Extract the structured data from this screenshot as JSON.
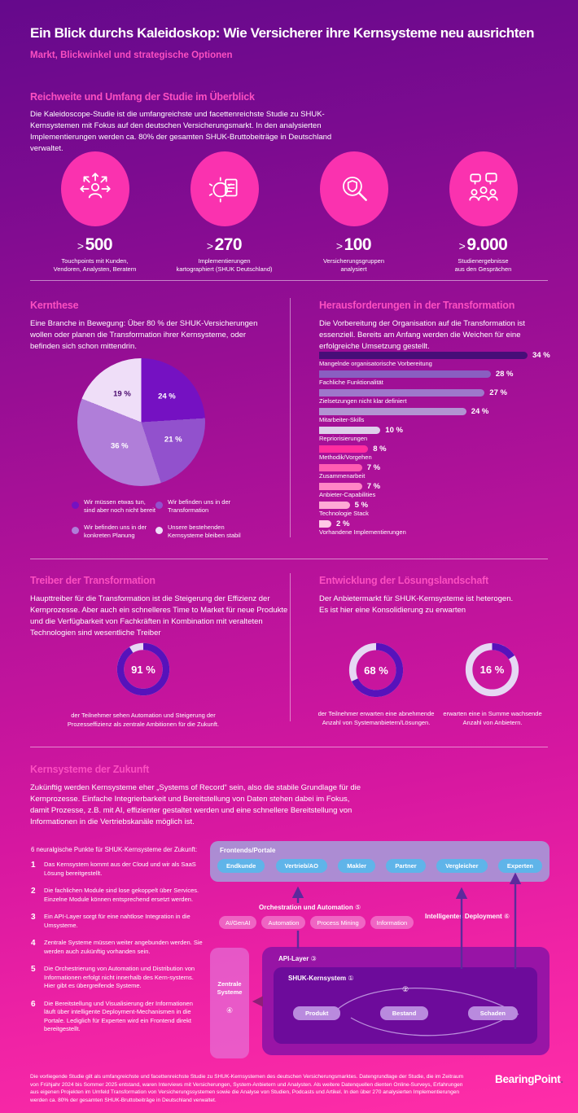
{
  "palette": {
    "bg_top": "#65098c",
    "bg_bottom": "#ff2ea8",
    "accent_pink": "#fc4fc1",
    "stat_circle": "#fa32af",
    "frontend_pill_blue": "#5fb4e9",
    "arrow_purple": "#5c2a9c",
    "arrow_magenta": "#8e1f77"
  },
  "header": {
    "title": "Ein Blick durchs Kaleidoskop: Wie Versicherer ihre Kernsysteme neu ausrichten",
    "subtitle": "Markt, Blickwinkel und strategische Optionen"
  },
  "overview": {
    "heading": "Reichweite und Umfang der Studie im Überblick",
    "body": "Die Kaleidoscope-Studie ist die umfangreichste und facettenreichste Studie zu SHUK-Kernsystemen mit Fokus auf den deutschen Versicherungsmarkt. In den analysierten Implementierungen werden ca. 80% der gesamten SHUK-Bruttobeiträge in Deutschland verwaltet.",
    "stats": [
      {
        "icon": "person-arrows-icon",
        "prefix": ">",
        "value": "500",
        "label": "Touchpoints mit Kunden,\nVendoren, Analysten, Beratern"
      },
      {
        "icon": "gear-document-icon",
        "prefix": ">",
        "value": "270",
        "label": "Implementierungen\nkartographiert (SHUK Deutschland)"
      },
      {
        "icon": "shield-magnifier-icon",
        "prefix": ">",
        "value": "100",
        "label": "Versicherungsgruppen\nanalysiert"
      },
      {
        "icon": "people-chat-icon",
        "prefix": ">",
        "value": "9.000",
        "label": "Studienergebnisse\naus den Gesprächen"
      }
    ]
  },
  "kernthese": {
    "heading": "Kernthese",
    "body": "Eine Branche in Bewegung: Über 80 % der SHUK-Versicherungen wollen oder planen die Transformation ihrer Kernsysteme, oder befinden sich schon mittendrin."
  },
  "herausforderungen": {
    "heading": "Herausforderungen in der Transformation",
    "body": "Die Vorbereitung der Organisation auf die Transformation ist essenziell. Bereits am Anfang werden die Weichen für eine erfolgreiche Umsetzung gestellt."
  },
  "treiber": {
    "heading": "Treiber der Transformation",
    "body": "Haupttreiber für die Transformation ist die Steigerung der Effizienz der Kernprozesse. Aber auch ein schnelleres Time to Market für neue Produkte und die Verfügbarkeit von Fachkräften in Kombination mit veralteten Technologien sind wesentliche Treiber",
    "caption": "der Teilnehmer sehen Automation und Steigerung der\nProzesseffizienz als zentrale Ambitionen für die Zukunft."
  },
  "loesungslandschaft": {
    "heading": "Entwicklung der Lösungslandschaft",
    "body": "Der Anbietermarkt für SHUK-Kernsysteme ist heterogen.\nEs ist hier eine Konsolidierung zu erwarten",
    "captions": [
      "der Teilnehmer erwarten eine abnehmende\nAnzahl von Systemanbietern/Lösungen.",
      "erwarten eine in Summe wachsende\nAnzahl von Anbietern."
    ]
  },
  "zukunft": {
    "heading": "Kernsysteme der Zukunft",
    "body": "Zukünftig werden Kernsysteme eher „Systems of Record“ sein, also die stabile Grundlage für die Kernprozesse. Einfache Integrierbarkeit und Bereitstellung von Daten stehen dabei im Fokus, damit Prozesse, z.B. mit AI, effizienter gestaltet werden und eine schnellere Bereitstellung von Informationen in die Vertriebskanäle möglich ist.",
    "points_title": "6 neuralgische Punkte für SHUK-Kernsysteme der Zukunft:",
    "points": [
      {
        "num": "1",
        "text": "Das Kernsystem kommt aus der Cloud und wir als SaaS Lösung bereitgestellt."
      },
      {
        "num": "2",
        "text": "Die fachlichen Module sind lose gekoppelt über Services. Einzelne Module können entsprechend ersetzt werden."
      },
      {
        "num": "3",
        "text": "Ein API-Layer sorgt für eine nahtlose Integration in die Umsysteme."
      },
      {
        "num": "4",
        "text": "Zentrale Systeme müssen weiter angebunden werden. Sie werden auch zukünftig vorhanden sein."
      },
      {
        "num": "5",
        "text": "Die Orchestrierung von Automation und Distribution von Informationen erfolgt nicht innerhalb des Kern-systems. Hier gibt es übergreifende Systeme."
      },
      {
        "num": "6",
        "text": "Die Bereitstellung und Visualisierung der Informationen läuft über intelligente Deployment-Mechanismen in die Portale. Lediglich für Experten wird ein Frontend direkt bereitgestellt."
      }
    ]
  },
  "diagram": {
    "frontends": {
      "title": "Frontends/Portale",
      "pills": [
        "Endkunde",
        "Vertrieb/AO",
        "Makler",
        "Partner",
        "Vergleicher",
        "Experten"
      ]
    },
    "orchestration": {
      "label": "Orchestration und Automation",
      "num": "⑤",
      "pills": [
        "AI/GenAI",
        "Automation",
        "Process Mining",
        "Information"
      ]
    },
    "deployment": {
      "label": "Intelligentes Deployment",
      "num": "⑥"
    },
    "api": {
      "label": "API-Layer",
      "num": "③"
    },
    "core": {
      "label": "SHUK-Kernsystem",
      "num": "①",
      "link_num": "②",
      "pills": [
        "Produkt",
        "Bestand",
        "Schaden"
      ]
    },
    "zentrale": {
      "label": "Zentrale\nSysteme",
      "num": "④"
    }
  },
  "footer": {
    "text": "Die vorliegende Studie gilt als umfangreichste und facettenreichste Studie zu SHUK-Kernsystemen des deutschen Versicherungsmarktes. Datengrundlage der Studie, die im Zeitraum von Frühjahr 2024 bis Sommer 2025 entstand, waren Interviews mit Versicherungen, System-Anbietern und Analysten. Als weitere Datenquellen dienten Online-Surveys, Erfahrungen aus eigenen Projekten im Umfeld Transformation von Versicherungssystemen sowie die Analyse von Studien, Podcasts und Artikel. In den über 270 analysierten Implementierungen werden ca. 80% der gesamten SHUK-Bruttobeiträge in Deutschland verwaltet.",
    "logo_text": "BearingPoint",
    "logo_dot": "."
  },
  "chart_data": [
    {
      "id": "kernthese_pie",
      "type": "pie",
      "title": "Kernthese",
      "values": [
        24,
        21,
        36,
        19
      ],
      "value_labels": [
        "24 %",
        "21 %",
        "36 %",
        "19 %"
      ],
      "labels": [
        "Wir müssen etwas tun, sind aber noch nicht bereit",
        "Wir befinden uns in der Transformation",
        "Wir befinden uns in der konkreten Planung",
        "Unsere bestehenden Kernsysteme bleiben stabil"
      ],
      "colors": [
        "#7511c2",
        "#9251cd",
        "#b07ed9",
        "#efdef8"
      ],
      "start_angle_deg": 0,
      "direction": "clockwise",
      "legend_position": "bottom"
    },
    {
      "id": "herausforderungen_bars",
      "type": "bar",
      "orientation": "horizontal",
      "title": "Herausforderungen in der Transformation",
      "categories": [
        "Mangelnde organisatorische Vorbereitung",
        "Fachliche Funktionalität",
        "Zielsetzungen nicht klar definiert",
        "Mitarbeiter-Skills",
        "Repriorisierungen",
        "Methodik/Vorgehen",
        "Zusammenarbeit",
        "Anbieter-Capabilities",
        "Technologie Stack",
        "Vorhandene Implementierungen"
      ],
      "values": [
        34,
        28,
        27,
        24,
        10,
        8,
        7,
        7,
        5,
        2
      ],
      "value_labels": [
        "34 %",
        "28 %",
        "27 %",
        "24 %",
        "10 %",
        "8 %",
        "7 %",
        "7 %",
        "5 %",
        "2 %"
      ],
      "colors": [
        "#470e78",
        "#8a5ec1",
        "#9e77cb",
        "#b294d2",
        "#decfeb",
        "#ff2da0",
        "#ff5cb2",
        "#ff86c6",
        "#ffa9d6",
        "#ffc9e6"
      ],
      "unit": "%",
      "xlim": [
        0,
        34
      ],
      "grid": false
    },
    {
      "id": "treiber_donut",
      "type": "donut",
      "value": 91,
      "label": "91 %",
      "color": "#5712bb",
      "track_color": "#e6d8f4"
    },
    {
      "id": "anbieter_donut_abnehmend",
      "type": "donut",
      "value": 68,
      "label": "68 %",
      "color": "#5712bb",
      "track_color": "#e6d8f4"
    },
    {
      "id": "anbieter_donut_wachsend",
      "type": "donut",
      "value": 16,
      "label": "16 %",
      "color": "#5712bb",
      "track_color": "#e6d8f4"
    }
  ]
}
